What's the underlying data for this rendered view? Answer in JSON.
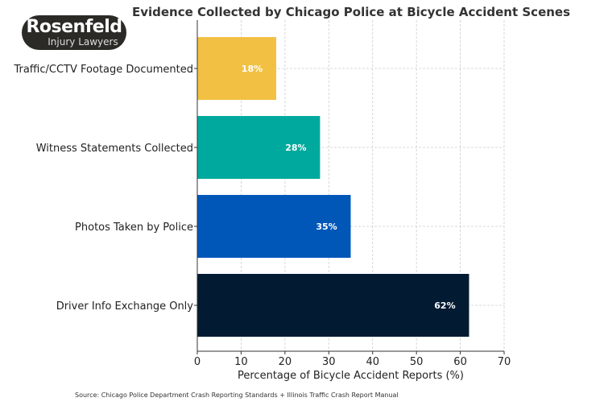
{
  "chart_data": {
    "type": "bar",
    "orientation": "horizontal",
    "title": "Evidence Collected by Chicago Police at Bicycle Accident Scenes",
    "xlabel": "Percentage of Bicycle Accident Reports (%)",
    "ylabel": "",
    "categories": [
      "Driver Info Exchange Only",
      "Photos Taken by Police",
      "Witness Statements Collected",
      "Traffic/CCTV Footage Documented"
    ],
    "values": [
      62,
      35,
      28,
      18
    ],
    "data_labels": [
      "62%",
      "35%",
      "28%",
      "18%"
    ],
    "colors": [
      "#031a33",
      "#0057b8",
      "#00a99d",
      "#f2c144"
    ],
    "xlim": [
      0,
      70
    ],
    "xticks": [
      0,
      10,
      20,
      30,
      40,
      50,
      60,
      70
    ],
    "grid": true
  },
  "logo": {
    "line1": "Rosenfeld",
    "line2": "Injury Lawyers"
  },
  "source": "Source: Chicago Police Department Crash Reporting Standards + Illinois Traffic Crash Report Manual"
}
